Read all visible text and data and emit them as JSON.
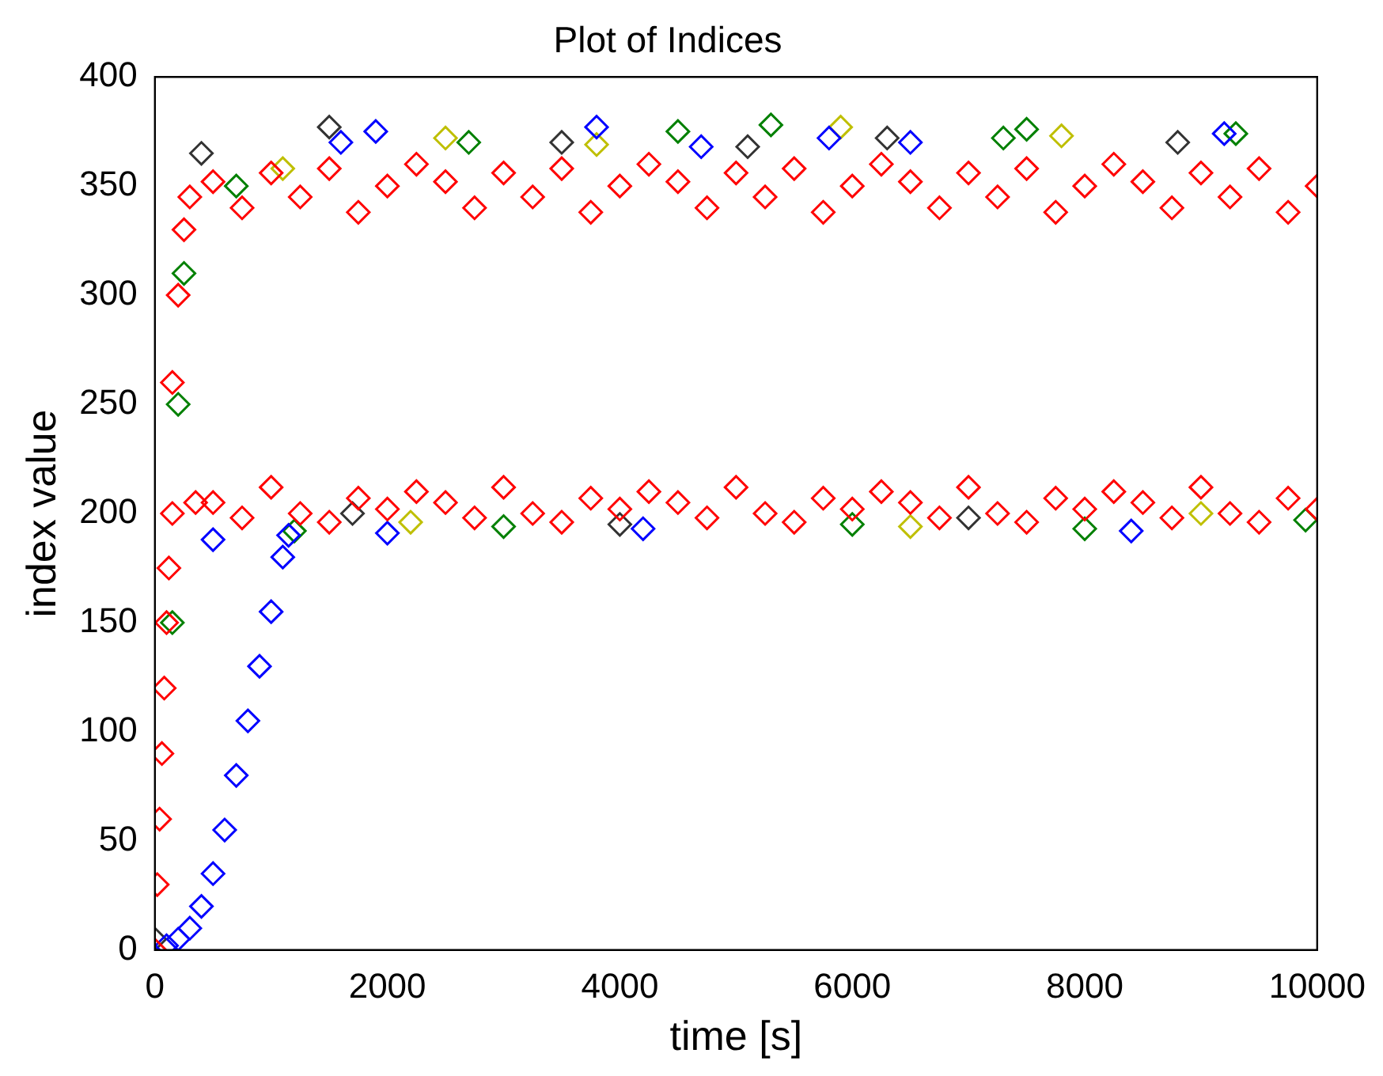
{
  "chart_data": {
    "type": "scatter",
    "title": "Plot of Indices",
    "xlabel": "time [s]",
    "ylabel": "index value",
    "xlim": [
      0,
      10000
    ],
    "ylim": [
      0,
      400
    ],
    "xticks": [
      0,
      2000,
      4000,
      6000,
      8000,
      10000
    ],
    "yticks": [
      0,
      50,
      100,
      150,
      200,
      250,
      300,
      350,
      400
    ],
    "grid": false,
    "legend": false,
    "marker": "diamond",
    "series": [
      {
        "color": "#ff0000",
        "x": [
          0,
          20,
          40,
          60,
          80,
          100,
          120,
          150,
          150,
          200,
          250,
          300,
          350,
          500,
          500,
          750,
          750,
          1000,
          1000,
          1250,
          1250,
          1500,
          1500,
          1750,
          1750,
          2000,
          2000,
          2250,
          2250,
          2500,
          2500,
          2750,
          2750,
          3000,
          3000,
          3250,
          3250,
          3500,
          3500,
          3750,
          3750,
          4000,
          4000,
          4250,
          4250,
          4500,
          4500,
          4750,
          4750,
          5000,
          5000,
          5250,
          5250,
          5500,
          5500,
          5750,
          5750,
          6000,
          6000,
          6250,
          6250,
          6500,
          6500,
          6750,
          6750,
          7000,
          7000,
          7250,
          7250,
          7500,
          7500,
          7750,
          7750,
          8000,
          8000,
          8250,
          8250,
          8500,
          8500,
          8750,
          8750,
          9000,
          9000,
          9250,
          9250,
          9500,
          9500,
          9750,
          9750,
          10000,
          10000
        ],
        "values": [
          0,
          30,
          60,
          90,
          120,
          150,
          175,
          200,
          260,
          300,
          330,
          345,
          205,
          352,
          205,
          340,
          198,
          356,
          212,
          345,
          200,
          358,
          196,
          338,
          207,
          350,
          202,
          360,
          210,
          352,
          205,
          340,
          198,
          356,
          212,
          345,
          200,
          358,
          196,
          338,
          207,
          350,
          202,
          360,
          210,
          352,
          205,
          340,
          198,
          356,
          212,
          345,
          200,
          358,
          196,
          338,
          207,
          350,
          202,
          360,
          210,
          352,
          205,
          340,
          198,
          356,
          212,
          345,
          200,
          358,
          196,
          338,
          207,
          350,
          202,
          360,
          210,
          352,
          205,
          340,
          198,
          356,
          212,
          345,
          200,
          358,
          196,
          338,
          207,
          350,
          202
        ]
      },
      {
        "color": "#0000ff",
        "x": [
          100,
          200,
          300,
          400,
          500,
          600,
          700,
          800,
          900,
          1000,
          1100,
          1150,
          500,
          1600,
          1900,
          2000,
          3800,
          4200,
          4700,
          5800,
          6500,
          8400,
          9200
        ],
        "values": [
          2,
          5,
          10,
          20,
          35,
          55,
          80,
          105,
          130,
          155,
          180,
          190,
          188,
          370,
          375,
          191,
          377,
          193,
          368,
          372,
          370,
          192,
          374
        ]
      },
      {
        "color": "#008000",
        "x": [
          150,
          200,
          250,
          700,
          1200,
          2700,
          3000,
          4500,
          5300,
          6000,
          7300,
          7500,
          8000,
          9300,
          9900
        ],
        "values": [
          150,
          250,
          310,
          350,
          192,
          370,
          194,
          375,
          378,
          195,
          372,
          376,
          193,
          374,
          197
        ]
      },
      {
        "color": "#333333",
        "x": [
          0,
          400,
          1500,
          1700,
          3500,
          4000,
          5100,
          6300,
          7000,
          8800
        ],
        "values": [
          5,
          365,
          377,
          200,
          370,
          195,
          368,
          372,
          198,
          370
        ]
      },
      {
        "color": "#bfbf00",
        "x": [
          1100,
          2200,
          2500,
          3800,
          5900,
          6500,
          7800,
          9000
        ],
        "values": [
          358,
          196,
          372,
          369,
          377,
          194,
          373,
          200
        ]
      }
    ]
  }
}
